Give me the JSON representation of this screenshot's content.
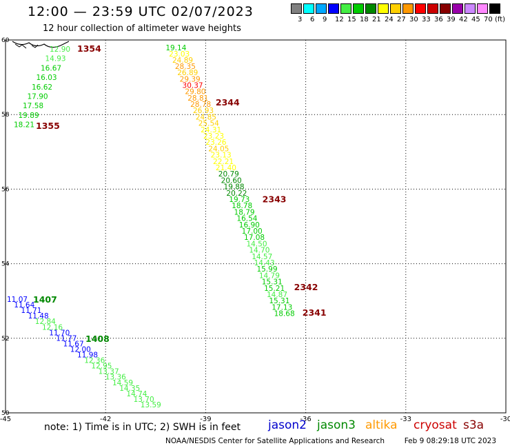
{
  "header": {
    "title": "12:00 — 23:59 UTC 02/07/2023",
    "subtitle": "12 hour collection of altimeter wave heights"
  },
  "legend": {
    "bins": [
      {
        "label": "3",
        "color": "#808080"
      },
      {
        "label": "6",
        "color": "#00ffff"
      },
      {
        "label": "9",
        "color": "#00a8ff"
      },
      {
        "label": "12",
        "color": "#0000ff"
      },
      {
        "label": "15",
        "color": "#44ee44"
      },
      {
        "label": "18",
        "color": "#00cc00"
      },
      {
        "label": "21",
        "color": "#008800"
      },
      {
        "label": "24",
        "color": "#ffff00"
      },
      {
        "label": "27",
        "color": "#ffd000"
      },
      {
        "label": "30",
        "color": "#ff9900"
      },
      {
        "label": "33",
        "color": "#ff0000"
      },
      {
        "label": "36",
        "color": "#cc0000"
      },
      {
        "label": "39",
        "color": "#880000"
      },
      {
        "label": "42",
        "color": "#9900aa"
      },
      {
        "label": "45",
        "color": "#cc88ff"
      },
      {
        "label": "70",
        "color": "#ff88ff"
      },
      {
        "label": "",
        "color": "#000000"
      }
    ],
    "unit": "(ft)"
  },
  "map": {
    "lon_range": [
      -45,
      -30
    ],
    "lat_range": [
      50,
      60
    ],
    "lon_ticks": [
      "-45",
      "-42",
      "-39",
      "-36",
      "-33",
      "-30"
    ],
    "lat_ticks": [
      "60",
      "58",
      "56",
      "54",
      "52",
      "50"
    ],
    "grid": "dotted"
  },
  "tracks": [
    {
      "points": [
        {
          "lon": -40.2,
          "lat": 59.8,
          "v": "19.14",
          "c": "#00cc00"
        },
        {
          "lon": -40.1,
          "lat": 59.63,
          "v": "23.03",
          "c": "#ffff00"
        },
        {
          "lon": -40.0,
          "lat": 59.46,
          "v": "24.89",
          "c": "#ffd000"
        },
        {
          "lon": -39.92,
          "lat": 59.3,
          "v": "28.35",
          "c": "#ff9900"
        },
        {
          "lon": -39.85,
          "lat": 59.13,
          "v": "26.89",
          "c": "#ffd000"
        },
        {
          "lon": -39.78,
          "lat": 58.96,
          "v": "29.39",
          "c": "#ff9900"
        },
        {
          "lon": -39.7,
          "lat": 58.79,
          "v": "30.37",
          "c": "#ff0000"
        },
        {
          "lon": -39.62,
          "lat": 58.62,
          "v": "29.80",
          "c": "#ff9900"
        },
        {
          "lon": -39.54,
          "lat": 58.45,
          "v": "28.81",
          "c": "#ff9900"
        },
        {
          "lon": -39.46,
          "lat": 58.28,
          "v": "28.78",
          "c": "#ff9900"
        },
        {
          "lon": -39.38,
          "lat": 58.11,
          "v": "26.93",
          "c": "#ffd000"
        },
        {
          "lon": -39.3,
          "lat": 57.94,
          "v": "24.85",
          "c": "#ffd000"
        },
        {
          "lon": -39.22,
          "lat": 57.77,
          "v": "25.54",
          "c": "#ffd000"
        },
        {
          "lon": -39.15,
          "lat": 57.6,
          "v": "24.31",
          "c": "#ffff00"
        },
        {
          "lon": -39.07,
          "lat": 57.43,
          "v": "23.23",
          "c": "#ffff00"
        },
        {
          "lon": -39.0,
          "lat": 57.26,
          "v": "23.26",
          "c": "#ffff00"
        },
        {
          "lon": -38.92,
          "lat": 57.09,
          "v": "24.05",
          "c": "#ffd000"
        },
        {
          "lon": -38.85,
          "lat": 56.92,
          "v": "23.13",
          "c": "#ffff00"
        },
        {
          "lon": -38.78,
          "lat": 56.75,
          "v": "22.21",
          "c": "#ffff00"
        },
        {
          "lon": -38.7,
          "lat": 56.58,
          "v": "21.40",
          "c": "#ffff00"
        },
        {
          "lon": -38.62,
          "lat": 56.41,
          "v": "20.79",
          "c": "#008800"
        },
        {
          "lon": -38.54,
          "lat": 56.24,
          "v": "20.60",
          "c": "#008800"
        },
        {
          "lon": -38.46,
          "lat": 56.07,
          "v": "19.88",
          "c": "#008800"
        },
        {
          "lon": -38.38,
          "lat": 55.9,
          "v": "20.22",
          "c": "#008800"
        },
        {
          "lon": -38.3,
          "lat": 55.73,
          "v": "19.73",
          "c": "#00cc00"
        },
        {
          "lon": -38.22,
          "lat": 55.56,
          "v": "18.78",
          "c": "#00cc00"
        },
        {
          "lon": -38.15,
          "lat": 55.39,
          "v": "18.79",
          "c": "#00cc00"
        },
        {
          "lon": -38.07,
          "lat": 55.22,
          "v": "16.54",
          "c": "#00cc00"
        },
        {
          "lon": -38.0,
          "lat": 55.05,
          "v": "16.90",
          "c": "#00cc00"
        },
        {
          "lon": -37.92,
          "lat": 54.88,
          "v": "17.00",
          "c": "#00cc00"
        },
        {
          "lon": -37.85,
          "lat": 54.71,
          "v": "17.08",
          "c": "#00cc00"
        },
        {
          "lon": -37.78,
          "lat": 54.54,
          "v": "14.50",
          "c": "#44ee44"
        },
        {
          "lon": -37.7,
          "lat": 54.37,
          "v": "14.70",
          "c": "#44ee44"
        },
        {
          "lon": -37.62,
          "lat": 54.2,
          "v": "14.57",
          "c": "#44ee44"
        },
        {
          "lon": -37.55,
          "lat": 54.03,
          "v": "14.43",
          "c": "#44ee44"
        },
        {
          "lon": -37.47,
          "lat": 53.86,
          "v": "15.99",
          "c": "#00cc00"
        },
        {
          "lon": -37.4,
          "lat": 53.69,
          "v": "14.79",
          "c": "#44ee44"
        },
        {
          "lon": -37.32,
          "lat": 53.52,
          "v": "15.31",
          "c": "#00cc00"
        },
        {
          "lon": -37.25,
          "lat": 53.35,
          "v": "15.21",
          "c": "#00cc00"
        },
        {
          "lon": -37.17,
          "lat": 53.18,
          "v": "14.87",
          "c": "#44ee44"
        },
        {
          "lon": -37.1,
          "lat": 53.01,
          "v": "15.31",
          "c": "#00cc00"
        },
        {
          "lon": -37.02,
          "lat": 52.84,
          "v": "17.13",
          "c": "#00cc00"
        },
        {
          "lon": -36.95,
          "lat": 52.67,
          "v": "18.68",
          "c": "#00cc00"
        }
      ],
      "times": [
        {
          "lon": -38.7,
          "lat": 58.32,
          "t": "2344",
          "c": "#880000"
        },
        {
          "lon": -37.3,
          "lat": 55.72,
          "t": "2343",
          "c": "#880000"
        },
        {
          "lon": -36.35,
          "lat": 53.36,
          "t": "2342",
          "c": "#880000"
        },
        {
          "lon": -36.1,
          "lat": 52.68,
          "t": "2341",
          "c": "#880000"
        }
      ]
    }
  ],
  "tracks_raw_note": "",
  "track_nw": {
    "points": [
      {
        "v": "12.90",
        "c": "#44ee44"
      },
      {
        "v": "14.93",
        "c": "#44ee44"
      },
      {
        "v": "16.67",
        "c": "#00cc00"
      },
      {
        "v": "16.03",
        "c": "#00cc00"
      },
      {
        "v": "16.62",
        "c": "#00cc00"
      },
      {
        "v": "17.90",
        "c": "#00cc00"
      },
      {
        "v": "17.58",
        "c": "#00cc00"
      },
      {
        "v": "19.89",
        "c": "#00cc00"
      },
      {
        "v": "18.21",
        "c": "#00cc00"
      }
    ],
    "times": [
      {
        "t": "1354",
        "c": "#880000"
      },
      {
        "t": "1355",
        "c": "#880000"
      }
    ]
  },
  "track_sw": {
    "points": [
      {
        "v": "11.07",
        "c": "#0000ff"
      },
      {
        "v": "11.64",
        "c": "#0000ff"
      },
      {
        "v": "11.71",
        "c": "#0000ff"
      },
      {
        "v": "11.48",
        "c": "#0000ff"
      },
      {
        "v": "12.84",
        "c": "#44ee44"
      },
      {
        "v": "12.16",
        "c": "#44ee44"
      },
      {
        "v": "11.70",
        "c": "#0000ff"
      },
      {
        "v": "11.77",
        "c": "#0000ff"
      },
      {
        "v": "11.67",
        "c": "#0000ff"
      },
      {
        "v": "12.00",
        "c": "#0000ff"
      },
      {
        "v": "11.98",
        "c": "#0000ff"
      },
      {
        "v": "12.36",
        "c": "#44ee44"
      },
      {
        "v": "12.95",
        "c": "#44ee44"
      },
      {
        "v": "13.37",
        "c": "#44ee44"
      },
      {
        "v": "13.36",
        "c": "#44ee44"
      },
      {
        "v": "14.59",
        "c": "#44ee44"
      },
      {
        "v": "14.35",
        "c": "#44ee44"
      },
      {
        "v": "14.74",
        "c": "#44ee44"
      },
      {
        "v": "13.70",
        "c": "#44ee44"
      },
      {
        "v": "13.59",
        "c": "#44ee44"
      }
    ],
    "times": [
      {
        "t": "1407",
        "c": "#008800"
      },
      {
        "t": "1408",
        "c": "#008800"
      }
    ]
  },
  "footer": {
    "note": "note: 1) Time is in UTC; 2) SWH is in feet",
    "satellites": [
      {
        "name": "jason2",
        "color": "#0000cc"
      },
      {
        "name": "jason3",
        "color": "#008800"
      },
      {
        "name": "altika",
        "color": "#ff9900"
      },
      {
        "name": "cryosat",
        "color": "#cc0000"
      },
      {
        "name": "s3a",
        "color": "#880000"
      }
    ],
    "credit": "NOAA/NESDIS Center for Satellite Applications and Research",
    "timestamp": "Feb  9 08:29:18 UTC 2023"
  }
}
